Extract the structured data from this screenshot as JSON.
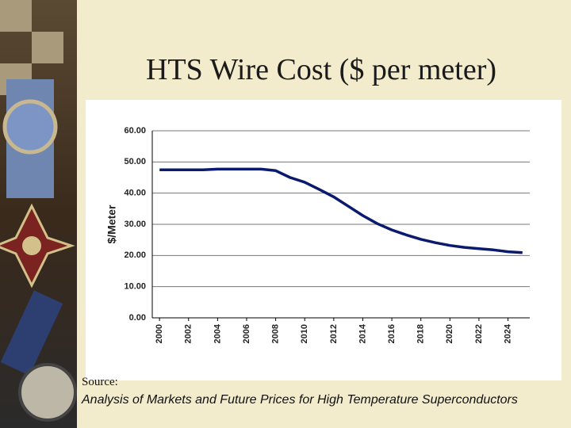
{
  "title": "HTS Wire Cost ($ per meter)",
  "source": {
    "label": "Source:",
    "text": "Analysis of Markets and Future Prices for High Temperature Superconductors"
  },
  "chart_data": {
    "type": "line",
    "ylabel": "$/Meter",
    "x": [
      2000,
      2001,
      2002,
      2003,
      2004,
      2005,
      2006,
      2007,
      2008,
      2009,
      2010,
      2011,
      2012,
      2013,
      2014,
      2015,
      2016,
      2017,
      2018,
      2019,
      2020,
      2021,
      2022,
      2023,
      2024,
      2025
    ],
    "values": [
      47.5,
      47.5,
      47.5,
      47.5,
      47.7,
      47.7,
      47.7,
      47.7,
      47.2,
      45,
      43.5,
      41.2,
      38.8,
      35.8,
      32.8,
      30.2,
      28.2,
      26.6,
      25.2,
      24.1,
      23.2,
      22.6,
      22.2,
      21.8,
      21.2,
      20.9
    ],
    "color": "#0a1a6e",
    "xlim": [
      1999.5,
      2025.5
    ],
    "xticks": [
      2000,
      2002,
      2004,
      2006,
      2008,
      2010,
      2012,
      2014,
      2016,
      2018,
      2020,
      2022,
      2024
    ],
    "ylim": [
      0,
      60
    ],
    "yticks": [
      {
        "value": 0,
        "label": "0.00"
      },
      {
        "value": 10,
        "label": "10.00"
      },
      {
        "value": 20,
        "label": "20.00"
      },
      {
        "value": 30,
        "label": "30.00"
      },
      {
        "value": 40,
        "label": "40.00"
      },
      {
        "value": 50,
        "label": "50.00"
      },
      {
        "value": 60,
        "label": "60.00"
      }
    ],
    "grid": true
  }
}
